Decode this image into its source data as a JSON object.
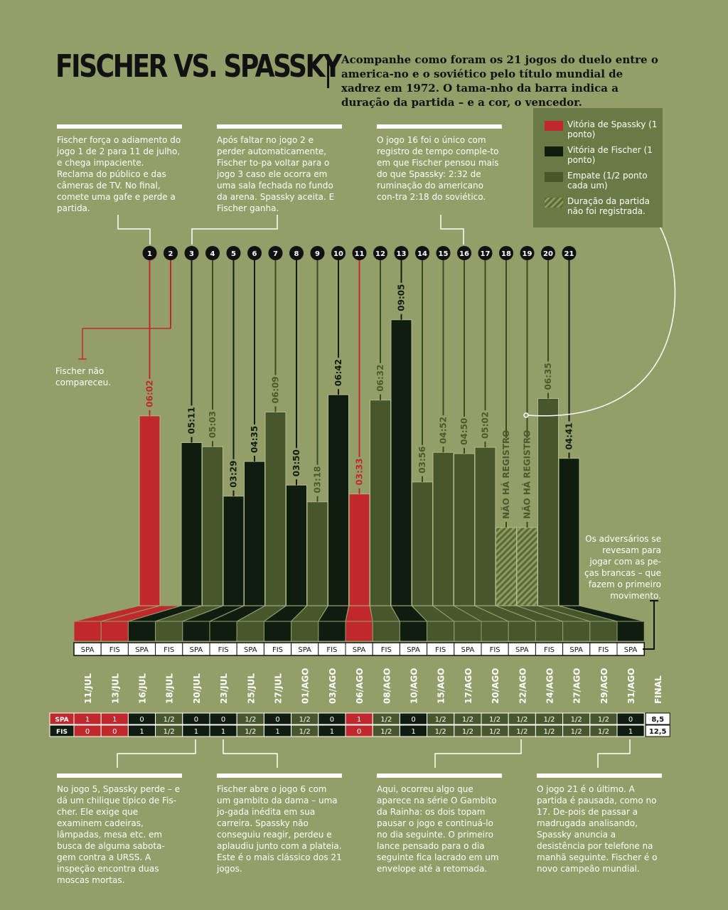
{
  "header": {
    "title": "FISCHER VS. SPASSKY",
    "subtitle": "Acompanhe como foram os 21 jogos do duelo entre o america-no e o soviético pelo título mundial de xadrez em 1972. O tama-nho da barra indica a duração da partida – e a cor, o vencedor."
  },
  "legend": {
    "items": [
      {
        "label": "Vitória de Spassky (1 ponto)",
        "color": "#c0292b"
      },
      {
        "label": "Vitória de Fischer (1 ponto)",
        "color": "#0f1c10"
      },
      {
        "label": "Empate (1/2 ponto cada um)",
        "color": "#48562b"
      },
      {
        "label": "Duração da partida não foi registrada.",
        "color": "hatched"
      }
    ]
  },
  "notes": {
    "top1": "Fischer força o adiamento do jogo 1 de 2 para 11 de julho, e chega impaciente. Reclama do público e das câmeras de TV. No final, comete uma gafe e perde a partida.",
    "top2": "Após faltar no jogo 2 e perder automaticamente, Fischer to-pa voltar para o jogo 3 caso ele ocorra em uma sala fechada no fundo da arena. Spassky aceita. E Fischer ganha.",
    "top3": "O jogo 16 foi o único com registro de tempo comple-to em que Fischer pensou mais do que Spassky: 2:32 de ruminação do americano con-tra 2:18 do soviético.",
    "game2": "Fischer não compareceu.",
    "white_pieces": "Os adversários se revesam para jogar com as pe-ças brancas – que fazem o primeiro movimento.",
    "bottom1": "No jogo 5, Spassky perde – e dá um chilique típico de Fis-cher. Ele exige que examinem cadeiras, lâmpadas, mesa etc. em busca de alguma sabota-gem contra a URSS. A inspeção encontra duas moscas mortas.",
    "bottom2": "Fischer abre o jogo 6 com um gambito da dama – uma jo-gada inédita em sua carreira. Spassky não conseguiu reagir, perdeu e aplaudiu junto com a plateia. Este é o mais clássico dos 21 jogos.",
    "bottom3": "Aqui, ocorreu algo que aparece na série O Gambito da Rainha: os dois topam pausar o jogo e continuá-lo no dia seguinte. O primeiro lance pensado para o dia seguinte fica lacrado em um envelope até a retomada.",
    "bottom4": "O jogo 21 é o último. A partida é pausada, como no 17. De-pois de passar a madrugada analisando, Spassky anuncia a desistência por telefone na manhã seguinte. Fischer é o novo campeão mundial."
  },
  "chart_data": {
    "type": "bar",
    "games": [
      {
        "n": "1",
        "date": "11/JUL",
        "duration": "06:02",
        "hours": 6.03,
        "winner": "spassky",
        "white": "SPA",
        "spa": "1",
        "fis": "0"
      },
      {
        "n": "2",
        "date": "13/JUL",
        "duration": "",
        "hours": 0,
        "winner": "spassky",
        "white": "FIS",
        "spa": "1",
        "fis": "0"
      },
      {
        "n": "3",
        "date": "16/JUL",
        "duration": "05:11",
        "hours": 5.18,
        "winner": "fischer",
        "white": "SPA",
        "spa": "0",
        "fis": "1"
      },
      {
        "n": "4",
        "date": "18/JUL",
        "duration": "05:03",
        "hours": 5.05,
        "winner": "draw",
        "white": "FIS",
        "spa": "1/2",
        "fis": "1/2"
      },
      {
        "n": "5",
        "date": "20/JUL",
        "duration": "03:29",
        "hours": 3.48,
        "winner": "fischer",
        "white": "SPA",
        "spa": "0",
        "fis": "1"
      },
      {
        "n": "6",
        "date": "23/JUL",
        "duration": "04:35",
        "hours": 4.58,
        "winner": "fischer",
        "white": "FIS",
        "spa": "0",
        "fis": "1"
      },
      {
        "n": "7",
        "date": "25/JUL",
        "duration": "06:09",
        "hours": 6.15,
        "winner": "draw",
        "white": "SPA",
        "spa": "1/2",
        "fis": "1/2"
      },
      {
        "n": "8",
        "date": "27/JUL",
        "duration": "03:50",
        "hours": 3.83,
        "winner": "fischer",
        "white": "FIS",
        "spa": "0",
        "fis": "1"
      },
      {
        "n": "9",
        "date": "01/AGO",
        "duration": "03:18",
        "hours": 3.3,
        "winner": "draw",
        "white": "SPA",
        "spa": "1/2",
        "fis": "1/2"
      },
      {
        "n": "10",
        "date": "03/AGO",
        "duration": "06:42",
        "hours": 6.7,
        "winner": "fischer",
        "white": "FIS",
        "spa": "0",
        "fis": "1"
      },
      {
        "n": "11",
        "date": "06/AGO",
        "duration": "03:33",
        "hours": 3.55,
        "winner": "spassky",
        "white": "SPA",
        "spa": "1",
        "fis": "0"
      },
      {
        "n": "12",
        "date": "08/AGO",
        "duration": "06:32",
        "hours": 6.53,
        "winner": "draw",
        "white": "FIS",
        "spa": "1/2",
        "fis": "1/2"
      },
      {
        "n": "13",
        "date": "10/AGO",
        "duration": "09:05",
        "hours": 9.08,
        "winner": "fischer",
        "white": "SPA",
        "spa": "0",
        "fis": "1"
      },
      {
        "n": "14",
        "date": "15/AGO",
        "duration": "03:56",
        "hours": 3.93,
        "winner": "draw",
        "white": "FIS",
        "spa": "1/2",
        "fis": "1/2"
      },
      {
        "n": "15",
        "date": "17/AGO",
        "duration": "04:52",
        "hours": 4.87,
        "winner": "draw",
        "white": "SPA",
        "spa": "1/2",
        "fis": "1/2"
      },
      {
        "n": "16",
        "date": "20/AGO",
        "duration": "04:50",
        "hours": 4.83,
        "winner": "draw",
        "white": "FIS",
        "spa": "1/2",
        "fis": "1/2"
      },
      {
        "n": "17",
        "date": "22/AGO",
        "duration": "05:02",
        "hours": 5.03,
        "winner": "draw",
        "white": "SPA",
        "spa": "1/2",
        "fis": "1/2"
      },
      {
        "n": "18",
        "date": "24/AGO",
        "duration": "NÃO HÁ REGISTRO",
        "hours": null,
        "winner": "draw",
        "white": "FIS",
        "spa": "1/2",
        "fis": "1/2"
      },
      {
        "n": "19",
        "date": "27/AGO",
        "duration": "NÃO HÁ REGISTRO",
        "hours": null,
        "winner": "draw",
        "white": "SPA",
        "spa": "1/2",
        "fis": "1/2"
      },
      {
        "n": "20",
        "date": "29/AGO",
        "duration": "06:35",
        "hours": 6.58,
        "winner": "draw",
        "white": "FIS",
        "spa": "1/2",
        "fis": "1/2"
      },
      {
        "n": "21",
        "date": "31/AGO",
        "duration": "04:41",
        "hours": 4.68,
        "winner": "fischer",
        "white": "SPA",
        "spa": "0",
        "fis": "1"
      }
    ],
    "final_label": "FINAL",
    "score_rows": {
      "spa": "SPA",
      "fis": "FIS"
    },
    "final": {
      "spa": "8,5",
      "fis": "12,5"
    }
  }
}
